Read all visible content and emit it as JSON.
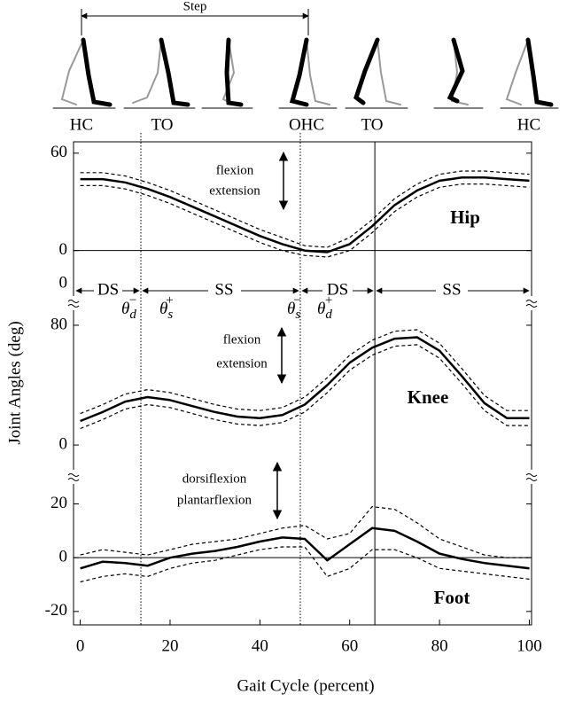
{
  "step_label": "Step",
  "gait_events": [
    "HC",
    "TO",
    "OHC",
    "TO",
    "HC"
  ],
  "phases": [
    "DS",
    "SS",
    "DS",
    "SS"
  ],
  "thresholds": [
    {
      "symbol": "θ",
      "sub": "d",
      "sup": "−"
    },
    {
      "symbol": "θ",
      "sub": "s",
      "sup": "+"
    },
    {
      "symbol": "θ",
      "sub": "s",
      "sup": "−"
    },
    {
      "symbol": "θ",
      "sub": "d",
      "sup": "+"
    }
  ],
  "break_label": "0",
  "events": [
    {
      "x": 13.5,
      "style": "dotted"
    },
    {
      "x": 49,
      "style": "dotted"
    },
    {
      "x": 65.6,
      "style": "solid"
    }
  ],
  "chart_data": [
    {
      "type": "line",
      "title": "Hip",
      "annotations": [
        "flexion",
        "extension"
      ],
      "x": [
        0,
        5,
        10,
        15,
        20,
        25,
        30,
        35,
        40,
        45,
        50,
        55,
        60,
        65,
        70,
        75,
        80,
        85,
        90,
        95,
        100
      ],
      "xlim": [
        -1.5,
        100.5
      ],
      "ylim": [
        -4,
        67
      ],
      "yticks": [
        0,
        60
      ],
      "zero_line": true,
      "series": [
        {
          "color": "#000",
          "style": "solid",
          "values": [
            44,
            44,
            42,
            38,
            33,
            27,
            21,
            15,
            9,
            4,
            0,
            -1,
            4,
            15,
            28,
            37,
            43,
            45,
            45,
            44,
            43
          ]
        },
        {
          "color": "#000",
          "style": "dashed",
          "values": [
            48,
            48,
            46,
            42,
            37,
            31,
            25,
            19,
            13,
            8,
            3,
            2,
            8,
            19,
            32,
            41,
            47,
            49,
            49,
            48,
            47
          ]
        },
        {
          "color": "#000",
          "style": "dashed",
          "values": [
            40,
            40,
            38,
            34,
            29,
            23,
            17,
            11,
            5,
            0,
            -3,
            -4,
            0,
            11,
            24,
            33,
            39,
            41,
            41,
            40,
            39
          ]
        }
      ]
    },
    {
      "type": "line",
      "title": "Knee",
      "annotations": [
        "flexion",
        "extension"
      ],
      "ylabel": "Joint Angles (deg)",
      "x": [
        0,
        5,
        10,
        15,
        20,
        25,
        30,
        35,
        40,
        45,
        50,
        55,
        60,
        65,
        70,
        75,
        80,
        85,
        90,
        95,
        100
      ],
      "xlim": [
        -1.5,
        100.5
      ],
      "ylim": [
        -4.7,
        122.6
      ],
      "yticks": [
        0,
        80
      ],
      "zero_line": false,
      "series": [
        {
          "color": "#000",
          "style": "solid",
          "values": [
            16,
            22,
            29,
            32,
            30,
            26,
            22,
            19,
            18,
            20,
            27,
            40,
            55,
            65,
            71,
            72,
            63,
            46,
            28,
            18,
            18
          ]
        },
        {
          "color": "#000",
          "style": "dashed",
          "values": [
            21,
            27,
            34,
            37,
            35,
            31,
            27,
            24,
            23,
            25,
            32,
            45,
            60,
            70,
            76,
            77,
            68,
            51,
            33,
            23,
            23
          ]
        },
        {
          "color": "#000",
          "style": "dashed",
          "values": [
            11,
            17,
            24,
            27,
            25,
            21,
            17,
            14,
            13,
            15,
            22,
            35,
            50,
            60,
            66,
            67,
            58,
            41,
            23,
            13,
            13
          ]
        }
      ]
    },
    {
      "type": "line",
      "title": "Foot",
      "annotations": [
        "dorsiflexion",
        "plantarflexion"
      ],
      "xlabel": "Gait Cycle (percent)",
      "x": [
        0,
        5,
        10,
        15,
        20,
        25,
        30,
        35,
        40,
        45,
        50,
        55,
        60,
        65,
        70,
        75,
        80,
        85,
        90,
        95,
        100
      ],
      "xlim": [
        -1.5,
        100.5
      ],
      "xticks": [
        0,
        20,
        40,
        60,
        80,
        100
      ],
      "ylim": [
        -25,
        36
      ],
      "yticks": [
        -20,
        0,
        20
      ],
      "zero_line": true,
      "series": [
        {
          "color": "#000",
          "style": "solid",
          "values": [
            -4,
            -1.5,
            -2,
            -3,
            0,
            1.5,
            2.5,
            4,
            6,
            7.5,
            7,
            -1,
            5,
            11,
            10,
            6,
            1.5,
            -0.5,
            -2,
            -3,
            -4
          ]
        },
        {
          "color": "#000",
          "style": "dashed",
          "values": [
            1,
            3,
            2,
            1,
            3,
            5,
            6,
            7,
            9,
            11,
            12,
            7,
            9,
            19,
            18,
            13,
            7,
            4,
            1,
            0,
            0
          ]
        },
        {
          "color": "#000",
          "style": "dashed",
          "values": [
            -9,
            -7,
            -6,
            -7,
            -4,
            -2,
            -1,
            1,
            3,
            4,
            4,
            -7,
            -4,
            3,
            3,
            0,
            -4,
            -5,
            -6,
            -7,
            -8
          ]
        }
      ]
    }
  ]
}
